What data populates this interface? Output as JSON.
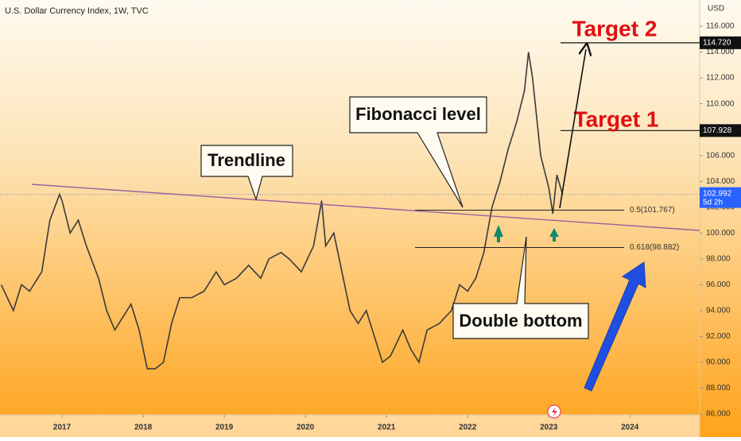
{
  "chart_data": {
    "type": "line",
    "title": "U.S. Dollar Currency Index, 1W, TVC",
    "y_axis_label": "USD",
    "x": [
      2016.25,
      2016.4,
      2016.5,
      2016.6,
      2016.75,
      2016.85,
      2016.97,
      2017.0,
      2017.1,
      2017.2,
      2017.3,
      2017.45,
      2017.55,
      2017.65,
      2017.75,
      2017.85,
      2017.95,
      2018.05,
      2018.15,
      2018.25,
      2018.35,
      2018.45,
      2018.6,
      2018.75,
      2018.9,
      2019.0,
      2019.15,
      2019.3,
      2019.45,
      2019.55,
      2019.7,
      2019.8,
      2019.95,
      2020.1,
      2020.2,
      2020.25,
      2020.35,
      2020.45,
      2020.55,
      2020.65,
      2020.75,
      2020.85,
      2020.95,
      2021.05,
      2021.2,
      2021.3,
      2021.4,
      2021.5,
      2021.65,
      2021.8,
      2021.9,
      2022.0,
      2022.1,
      2022.2,
      2022.3,
      2022.4,
      2022.5,
      2022.6,
      2022.7,
      2022.75,
      2022.8,
      2022.9,
      2023.0,
      2023.05,
      2023.1,
      2023.17
    ],
    "series": [
      {
        "color": "#3a3a3a",
        "values": [
          96,
          94,
          96,
          95.5,
          97,
          101,
          103,
          102.5,
          100,
          101,
          99,
          96.5,
          94,
          92.5,
          93.5,
          94.5,
          92.5,
          89.5,
          89.5,
          90,
          93,
          95,
          95,
          95.5,
          97,
          96,
          96.5,
          97.5,
          96.5,
          98,
          98.5,
          98,
          97,
          99,
          102.5,
          99,
          100,
          97,
          94,
          93,
          94,
          92,
          90,
          90.5,
          92.5,
          91,
          90,
          92.5,
          93,
          94,
          96,
          95.5,
          96.5,
          98.5,
          102,
          104,
          106.5,
          108.5,
          111,
          114,
          112,
          106,
          103.5,
          101.5,
          104.5,
          103
        ]
      }
    ],
    "xlim": [
      2016.235,
      2024.86
    ],
    "xticks": [
      2017,
      2018,
      2019,
      2020,
      2021,
      2022,
      2023,
      2024
    ],
    "ylim": [
      85.94,
      118.03
    ],
    "yticks": [
      {
        "value": 86,
        "label": "86.000"
      },
      {
        "value": 88,
        "label": "88.000"
      },
      {
        "value": 90,
        "label": "90.000"
      },
      {
        "value": 92,
        "label": "92.000"
      },
      {
        "value": 94,
        "label": "94.000"
      },
      {
        "value": 96,
        "label": "96.000"
      },
      {
        "value": 98,
        "label": "98.000"
      },
      {
        "value": 100,
        "label": "100.000"
      },
      {
        "value": 102,
        "label": "102.000"
      },
      {
        "value": 104,
        "label": "104.000"
      },
      {
        "value": 106,
        "label": "106.000"
      },
      {
        "value": 108,
        "label": "108.000"
      },
      {
        "value": 110,
        "label": "110.000"
      },
      {
        "value": 112,
        "label": "112.000"
      },
      {
        "value": 114,
        "label": "114.000"
      },
      {
        "value": 116,
        "label": "116.000"
      }
    ],
    "price_tags": [
      {
        "value": 114.72,
        "label": "114.720"
      },
      {
        "value": 107.928,
        "label": "107.928"
      }
    ],
    "last_price": {
      "value": 102.992,
      "label": "102.992",
      "countdown": "5d 2h"
    },
    "fib_levels": [
      {
        "value": 101.767,
        "label": "0.5(101.767)"
      },
      {
        "value": 98.882,
        "label": "0.618(98.882)"
      }
    ],
    "annotations": [
      "Trendline",
      "Fibonacci level",
      "Double bottom",
      "Target 1",
      "Target 2"
    ]
  }
}
